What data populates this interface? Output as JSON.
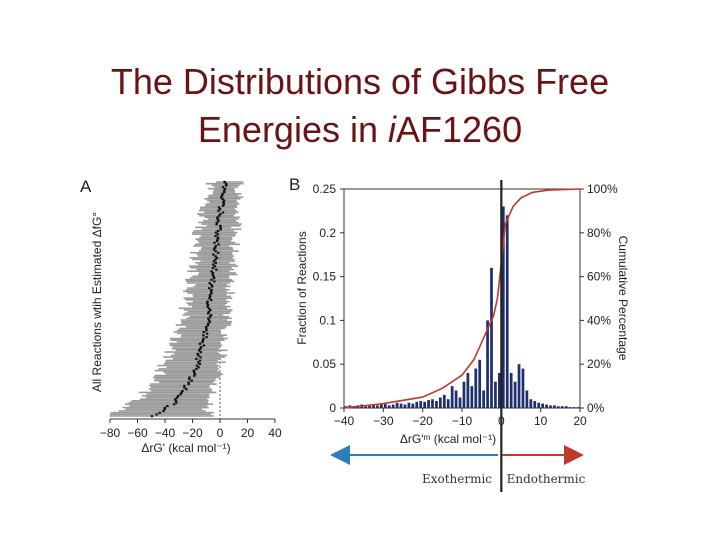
{
  "slide": {
    "title_line1": "The Distributions of Gibbs Free",
    "title_line2_prefix": "Energies in ",
    "title_line2_italic": "i",
    "title_line2_suffix": "AF1260"
  },
  "panel_a": {
    "letter": "A",
    "ylabel": "All Reactions wtih Estimated ΔfG°",
    "xlabel": "ΔrG' (kcal mol⁻¹)"
  },
  "panel_b": {
    "letter": "B",
    "ylabel": "Fraction of Reactions",
    "y2label": "Cumulative Percentage",
    "xlabel": "ΔrG'ᵐ (kcal mol⁻¹)"
  },
  "arrows": {
    "left_label": "Exothermic",
    "right_label": "Endothermic",
    "left_color": "#2e7fb8",
    "right_color": "#c0392b"
  },
  "chart_data": [
    {
      "type": "scatter",
      "panel": "A",
      "xlabel": "ΔrG' (kcal mol⁻¹)",
      "ylabel": "All Reactions wtih Estimated ΔfG°",
      "xlim": [
        -80,
        40
      ],
      "x_ticks": [
        -80,
        -60,
        -40,
        -20,
        0,
        20,
        40
      ],
      "series": [
        {
          "values": [
            {
              "y": 0.0,
              "x": -48,
              "lo": -80,
              "hi": -5
            },
            {
              "y": 0.03,
              "x": -40,
              "lo": -70,
              "hi": -10
            },
            {
              "y": 0.06,
              "x": -33,
              "lo": -62,
              "hi": -8
            },
            {
              "y": 0.1,
              "x": -27,
              "lo": -55,
              "hi": -6
            },
            {
              "y": 0.15,
              "x": -22,
              "lo": -48,
              "hi": -3
            },
            {
              "y": 0.2,
              "x": -18,
              "lo": -42,
              "hi": 0
            },
            {
              "y": 0.25,
              "x": -15,
              "lo": -38,
              "hi": 2
            },
            {
              "y": 0.3,
              "x": -13,
              "lo": -34,
              "hi": 3
            },
            {
              "y": 0.35,
              "x": -11,
              "lo": -30,
              "hi": 4
            },
            {
              "y": 0.4,
              "x": -9,
              "lo": -28,
              "hi": 5
            },
            {
              "y": 0.45,
              "x": -8,
              "lo": -26,
              "hi": 6
            },
            {
              "y": 0.5,
              "x": -7,
              "lo": -24,
              "hi": 7
            },
            {
              "y": 0.55,
              "x": -6,
              "lo": -22,
              "hi": 8
            },
            {
              "y": 0.6,
              "x": -5,
              "lo": -20,
              "hi": 9
            },
            {
              "y": 0.65,
              "x": -4,
              "lo": -19,
              "hi": 10
            },
            {
              "y": 0.7,
              "x": -3,
              "lo": -18,
              "hi": 10
            },
            {
              "y": 0.75,
              "x": -2,
              "lo": -16,
              "hi": 11
            },
            {
              "y": 0.8,
              "x": -1,
              "lo": -15,
              "hi": 12
            },
            {
              "y": 0.85,
              "x": 0,
              "lo": -13,
              "hi": 13
            },
            {
              "y": 0.9,
              "x": 1,
              "lo": -10,
              "hi": 14
            },
            {
              "y": 0.95,
              "x": 3,
              "lo": -8,
              "hi": 14
            },
            {
              "y": 1.0,
              "x": 5,
              "lo": -5,
              "hi": 15
            }
          ]
        }
      ]
    },
    {
      "type": "bar",
      "panel": "B",
      "xlabel": "ΔrG'ᵐ (kcal mol⁻¹)",
      "ylabel": "Fraction of Reactions",
      "y2label": "Cumulative Percentage",
      "xlim": [
        -40,
        20
      ],
      "ylim": [
        0,
        0.25
      ],
      "y2lim": [
        0,
        100
      ],
      "x_ticks": [
        -40,
        -30,
        -20,
        -10,
        0,
        10,
        20
      ],
      "y_ticks": [
        0,
        0.05,
        0.1,
        0.15,
        0.2,
        0.25
      ],
      "y2_ticks": [
        "0%",
        "20%",
        "40%",
        "60%",
        "80%",
        "100%"
      ],
      "x": [
        -40,
        -39,
        -38,
        -37,
        -36,
        -35,
        -34,
        -33,
        -32,
        -31,
        -30,
        -29,
        -28,
        -27,
        -26,
        -25,
        -24,
        -23,
        -22,
        -21,
        -20,
        -19,
        -18,
        -17,
        -16,
        -15,
        -14,
        -13,
        -12,
        -11,
        -10,
        -9,
        -8,
        -7,
        -6,
        -5,
        -4,
        -3,
        -2,
        -1,
        0,
        1,
        2,
        3,
        4,
        5,
        6,
        7,
        8,
        9,
        10,
        11,
        12,
        13,
        14,
        15,
        16,
        17,
        18,
        19
      ],
      "values": [
        0.002,
        0.003,
        0.002,
        0.003,
        0.004,
        0.002,
        0.003,
        0.004,
        0.003,
        0.004,
        0.005,
        0.003,
        0.004,
        0.006,
        0.005,
        0.004,
        0.006,
        0.005,
        0.007,
        0.008,
        0.007,
        0.009,
        0.01,
        0.008,
        0.012,
        0.015,
        0.01,
        0.025,
        0.02,
        0.012,
        0.03,
        0.04,
        0.025,
        0.045,
        0.055,
        0.02,
        0.1,
        0.16,
        0.03,
        0.04,
        0.23,
        0.22,
        0.04,
        0.03,
        0.05,
        0.045,
        0.02,
        0.01,
        0.008,
        0.006,
        0.005,
        0.004,
        0.003,
        0.003,
        0.002,
        0.002,
        0.002,
        0.001,
        0.001,
        0.001
      ],
      "cumulative": [
        {
          "x": -40,
          "y": 0
        },
        {
          "x": -30,
          "y": 2
        },
        {
          "x": -20,
          "y": 5
        },
        {
          "x": -15,
          "y": 9
        },
        {
          "x": -10,
          "y": 15
        },
        {
          "x": -7,
          "y": 22
        },
        {
          "x": -5,
          "y": 30
        },
        {
          "x": -3,
          "y": 38
        },
        {
          "x": -2,
          "y": 42
        },
        {
          "x": -1,
          "y": 50
        },
        {
          "x": 0,
          "y": 66
        },
        {
          "x": 0.5,
          "y": 75
        },
        {
          "x": 1,
          "y": 84
        },
        {
          "x": 2,
          "y": 88
        },
        {
          "x": 3,
          "y": 92
        },
        {
          "x": 5,
          "y": 96
        },
        {
          "x": 8,
          "y": 98.5
        },
        {
          "x": 12,
          "y": 99.5
        },
        {
          "x": 20,
          "y": 100
        }
      ]
    }
  ]
}
